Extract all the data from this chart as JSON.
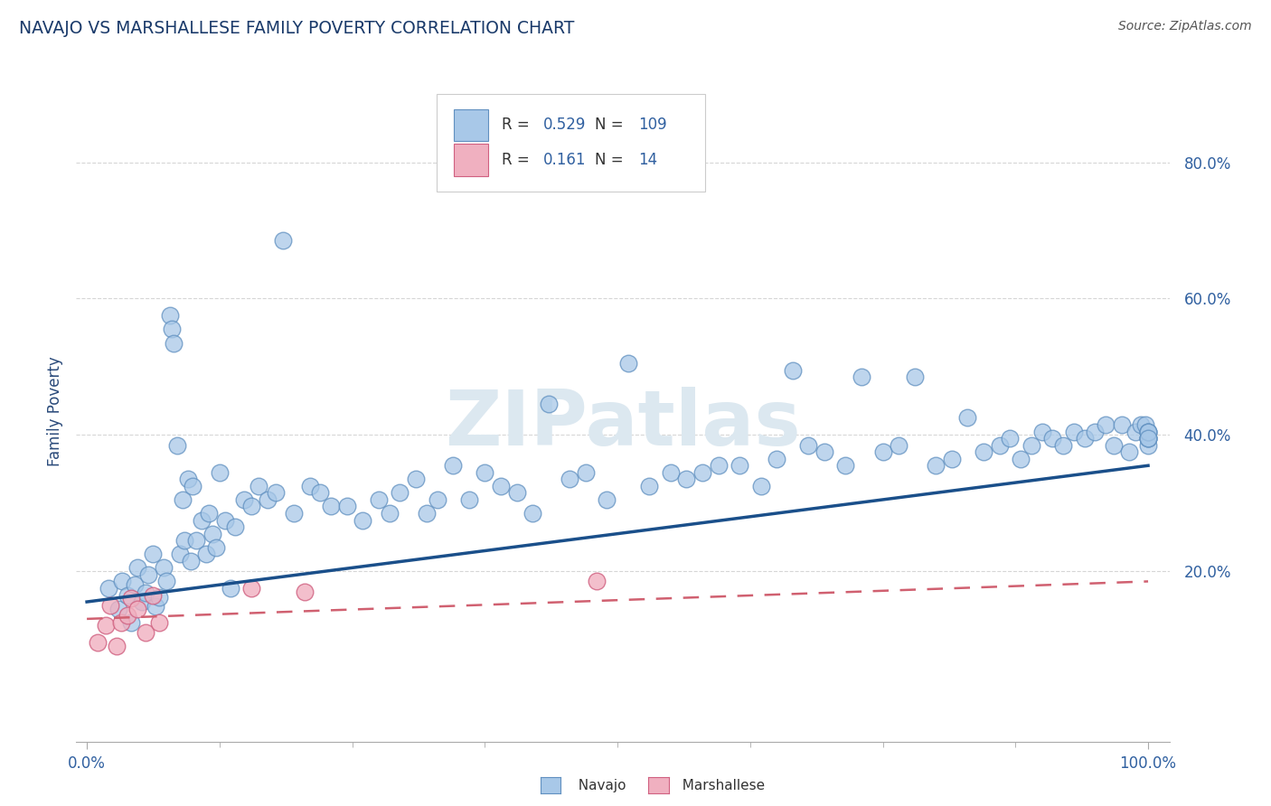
{
  "title": "NAVAJO VS MARSHALLESE FAMILY POVERTY CORRELATION CHART",
  "source_text": "Source: ZipAtlas.com",
  "ylabel": "Family Poverty",
  "xlim": [
    -0.01,
    1.02
  ],
  "ylim": [
    -0.05,
    0.92
  ],
  "x_tick_labels": [
    "0.0%",
    "100.0%"
  ],
  "x_tick_values": [
    0.0,
    1.0
  ],
  "y_tick_labels": [
    "20.0%",
    "40.0%",
    "60.0%",
    "80.0%"
  ],
  "y_tick_values": [
    0.2,
    0.4,
    0.6,
    0.8
  ],
  "navajo_R": "0.529",
  "navajo_N": "109",
  "marshallese_R": "0.161",
  "marshallese_N": "14",
  "navajo_color": "#a8c8e8",
  "navajo_edge_color": "#6090c0",
  "marshallese_color": "#f0b0c0",
  "marshallese_edge_color": "#d06080",
  "navajo_line_color": "#1a4f8a",
  "marshallese_line_color": "#d06070",
  "title_color": "#1a3a6a",
  "axis_label_color": "#2a4a7a",
  "tick_color": "#3060a0",
  "legend_label_color": "#3060a0",
  "source_color": "#555555",
  "background_color": "#ffffff",
  "watermark_text": "ZIPatlas",
  "watermark_color": "#dce8f0",
  "grid_color": "#cccccc",
  "navajo_scatter_x": [
    0.02,
    0.03,
    0.033,
    0.038,
    0.042,
    0.045,
    0.048,
    0.052,
    0.055,
    0.058,
    0.062,
    0.065,
    0.068,
    0.072,
    0.075,
    0.078,
    0.08,
    0.082,
    0.085,
    0.088,
    0.09,
    0.092,
    0.095,
    0.098,
    0.1,
    0.103,
    0.108,
    0.112,
    0.115,
    0.118,
    0.122,
    0.125,
    0.13,
    0.135,
    0.14,
    0.148,
    0.155,
    0.162,
    0.17,
    0.178,
    0.185,
    0.195,
    0.21,
    0.22,
    0.23,
    0.245,
    0.26,
    0.275,
    0.285,
    0.295,
    0.31,
    0.32,
    0.33,
    0.345,
    0.36,
    0.375,
    0.39,
    0.405,
    0.42,
    0.435,
    0.455,
    0.47,
    0.49,
    0.51,
    0.53,
    0.55,
    0.565,
    0.58,
    0.595,
    0.615,
    0.635,
    0.65,
    0.665,
    0.68,
    0.695,
    0.715,
    0.73,
    0.75,
    0.765,
    0.78,
    0.8,
    0.815,
    0.83,
    0.845,
    0.86,
    0.87,
    0.88,
    0.89,
    0.9,
    0.91,
    0.92,
    0.93,
    0.94,
    0.95,
    0.96,
    0.968,
    0.975,
    0.982,
    0.988,
    0.993,
    0.997,
    1.0,
    1.0,
    1.0,
    1.0,
    1.0,
    1.0,
    1.0,
    1.0
  ],
  "navajo_scatter_y": [
    0.175,
    0.145,
    0.185,
    0.165,
    0.125,
    0.18,
    0.205,
    0.155,
    0.168,
    0.195,
    0.225,
    0.148,
    0.162,
    0.205,
    0.185,
    0.575,
    0.555,
    0.535,
    0.385,
    0.225,
    0.305,
    0.245,
    0.335,
    0.215,
    0.325,
    0.245,
    0.275,
    0.225,
    0.285,
    0.255,
    0.235,
    0.345,
    0.275,
    0.175,
    0.265,
    0.305,
    0.295,
    0.325,
    0.305,
    0.315,
    0.685,
    0.285,
    0.325,
    0.315,
    0.295,
    0.295,
    0.275,
    0.305,
    0.285,
    0.315,
    0.335,
    0.285,
    0.305,
    0.355,
    0.305,
    0.345,
    0.325,
    0.315,
    0.285,
    0.445,
    0.335,
    0.345,
    0.305,
    0.505,
    0.325,
    0.345,
    0.335,
    0.345,
    0.355,
    0.355,
    0.325,
    0.365,
    0.495,
    0.385,
    0.375,
    0.355,
    0.485,
    0.375,
    0.385,
    0.485,
    0.355,
    0.365,
    0.425,
    0.375,
    0.385,
    0.395,
    0.365,
    0.385,
    0.405,
    0.395,
    0.385,
    0.405,
    0.395,
    0.405,
    0.415,
    0.385,
    0.415,
    0.375,
    0.405,
    0.415,
    0.415,
    0.395,
    0.395,
    0.405,
    0.385,
    0.395,
    0.405,
    0.405,
    0.395
  ],
  "marshallese_scatter_x": [
    0.01,
    0.018,
    0.022,
    0.028,
    0.032,
    0.038,
    0.042,
    0.048,
    0.055,
    0.062,
    0.068,
    0.205,
    0.48,
    0.155
  ],
  "marshallese_scatter_y": [
    0.095,
    0.12,
    0.15,
    0.09,
    0.125,
    0.135,
    0.16,
    0.145,
    0.11,
    0.165,
    0.125,
    0.17,
    0.185,
    0.175
  ],
  "navajo_trend": [
    0.0,
    1.0,
    0.155,
    0.355
  ],
  "marshallese_trend": [
    0.0,
    1.0,
    0.13,
    0.185
  ]
}
